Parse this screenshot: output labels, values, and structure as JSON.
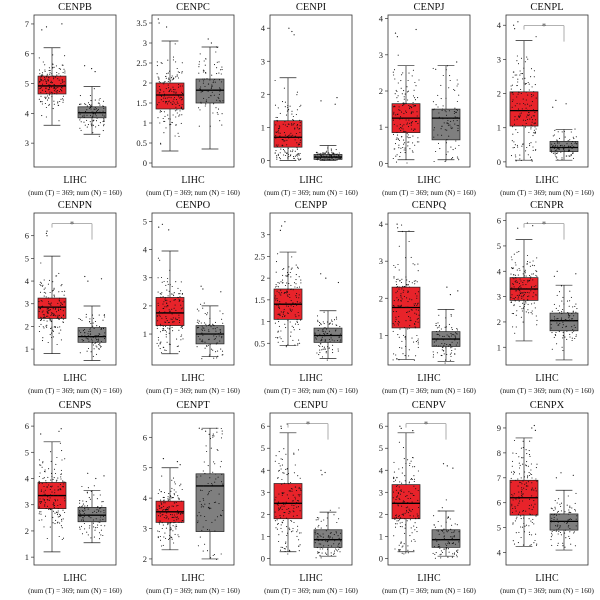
{
  "footer": {
    "dataset": "LIHC",
    "counts": "(num (T) = 369; num (N) = 160)"
  },
  "colors": {
    "tumor": "#e8232a",
    "normal": "#7f7f7f",
    "box_stroke": "#222222",
    "points": "#111111",
    "sig_line": "#999999"
  },
  "chart_data": [
    {
      "type": "boxplot",
      "title": "CENPB",
      "ylim": [
        2.2,
        7.3
      ],
      "yticks": [
        3,
        4,
        5,
        6,
        7
      ],
      "sig": false,
      "series": [
        {
          "name": "T",
          "whisker_low": 3.6,
          "q1": 4.65,
          "median": 4.92,
          "q3": 5.25,
          "whisker_high": 6.2,
          "pt_min": 3.1,
          "pt_max": 7.0
        },
        {
          "name": "N",
          "whisker_low": 3.3,
          "q1": 3.85,
          "median": 4.02,
          "q3": 4.22,
          "whisker_high": 4.9,
          "pt_min": 2.3,
          "pt_max": 5.6
        }
      ]
    },
    {
      "type": "boxplot",
      "title": "CENPC",
      "ylim": [
        -0.1,
        3.7
      ],
      "yticks": [
        0,
        0.5,
        1,
        1.5,
        2,
        2.5,
        3,
        3.5
      ],
      "sig": false,
      "series": [
        {
          "name": "T",
          "whisker_low": 0.3,
          "q1": 1.35,
          "median": 1.7,
          "q3": 2.0,
          "whisker_high": 3.05,
          "pt_min": 0.0,
          "pt_max": 3.6
        },
        {
          "name": "N",
          "whisker_low": 0.35,
          "q1": 1.5,
          "median": 1.82,
          "q3": 2.1,
          "whisker_high": 2.9,
          "pt_min": 0.0,
          "pt_max": 3.1
        }
      ]
    },
    {
      "type": "boxplot",
      "title": "CENPI",
      "ylim": [
        -0.2,
        4.4
      ],
      "yticks": [
        0,
        1,
        2,
        3,
        4
      ],
      "sig": false,
      "series": [
        {
          "name": "T",
          "whisker_low": 0.0,
          "q1": 0.4,
          "median": 0.7,
          "q3": 1.2,
          "whisker_high": 2.5,
          "pt_min": 0.0,
          "pt_max": 4.0
        },
        {
          "name": "N",
          "whisker_low": 0.0,
          "q1": 0.03,
          "median": 0.1,
          "q3": 0.18,
          "whisker_high": 0.45,
          "pt_min": 0.0,
          "pt_max": 1.9
        }
      ]
    },
    {
      "type": "boxplot",
      "title": "CENPJ",
      "ylim": [
        -0.1,
        4.1
      ],
      "yticks": [
        0,
        1,
        2,
        3,
        4
      ],
      "sig": false,
      "series": [
        {
          "name": "T",
          "whisker_low": 0.1,
          "q1": 0.85,
          "median": 1.25,
          "q3": 1.65,
          "whisker_high": 2.7,
          "pt_min": 0.0,
          "pt_max": 3.7
        },
        {
          "name": "N",
          "whisker_low": 0.1,
          "q1": 0.65,
          "median": 1.25,
          "q3": 1.5,
          "whisker_high": 2.7,
          "pt_min": 0.0,
          "pt_max": 2.8
        }
      ]
    },
    {
      "type": "boxplot",
      "title": "CENPL",
      "ylim": [
        -0.15,
        4.3
      ],
      "yticks": [
        0,
        1,
        2,
        3,
        4
      ],
      "sig": true,
      "series": [
        {
          "name": "T",
          "whisker_low": 0.05,
          "q1": 1.05,
          "median": 1.5,
          "q3": 2.05,
          "whisker_high": 3.55,
          "pt_min": 0.0,
          "pt_max": 4.1
        },
        {
          "name": "N",
          "whisker_low": 0.05,
          "q1": 0.3,
          "median": 0.42,
          "q3": 0.6,
          "whisker_high": 0.95,
          "pt_min": 0.0,
          "pt_max": 1.8
        }
      ]
    },
    {
      "type": "boxplot",
      "title": "CENPN",
      "ylim": [
        0.3,
        7.0
      ],
      "yticks": [
        1,
        2,
        3,
        4,
        5,
        6
      ],
      "sig": true,
      "series": [
        {
          "name": "T",
          "whisker_low": 0.8,
          "q1": 2.35,
          "median": 2.85,
          "q3": 3.25,
          "whisker_high": 5.1,
          "pt_min": 0.8,
          "pt_max": 6.2
        },
        {
          "name": "N",
          "whisker_low": 0.5,
          "q1": 1.3,
          "median": 1.55,
          "q3": 1.95,
          "whisker_high": 2.9,
          "pt_min": 0.4,
          "pt_max": 4.2
        }
      ]
    },
    {
      "type": "boxplot",
      "title": "CENPO",
      "ylim": [
        -0.1,
        5.3
      ],
      "yticks": [
        1,
        2,
        3,
        4,
        5
      ],
      "sig": false,
      "series": [
        {
          "name": "T",
          "whisker_low": 0.3,
          "q1": 1.3,
          "median": 1.75,
          "q3": 2.3,
          "whisker_high": 3.95,
          "pt_min": 0.3,
          "pt_max": 4.9
        },
        {
          "name": "N",
          "whisker_low": 0.2,
          "q1": 0.65,
          "median": 1.0,
          "q3": 1.3,
          "whisker_high": 2.0,
          "pt_min": 0.1,
          "pt_max": 2.7
        }
      ]
    },
    {
      "type": "boxplot",
      "title": "CENPP",
      "ylim": [
        0.0,
        3.5
      ],
      "yticks": [
        0.5,
        1,
        1.5,
        2,
        2.5,
        3
      ],
      "sig": false,
      "series": [
        {
          "name": "T",
          "whisker_low": 0.45,
          "q1": 1.05,
          "median": 1.4,
          "q3": 1.75,
          "whisker_high": 2.6,
          "pt_min": 0.4,
          "pt_max": 3.3
        },
        {
          "name": "N",
          "whisker_low": 0.15,
          "q1": 0.52,
          "median": 0.68,
          "q3": 0.85,
          "whisker_high": 1.25,
          "pt_min": 0.1,
          "pt_max": 2.1
        }
      ]
    },
    {
      "type": "boxplot",
      "title": "CENPQ",
      "ylim": [
        0.2,
        4.3
      ],
      "yticks": [
        1,
        2,
        3,
        4
      ],
      "sig": false,
      "series": [
        {
          "name": "T",
          "whisker_low": 0.35,
          "q1": 1.2,
          "median": 1.75,
          "q3": 2.3,
          "whisker_high": 3.8,
          "pt_min": 0.3,
          "pt_max": 4.0
        },
        {
          "name": "N",
          "whisker_low": 0.3,
          "q1": 0.7,
          "median": 0.9,
          "q3": 1.1,
          "whisker_high": 1.7,
          "pt_min": 0.2,
          "pt_max": 2.3
        }
      ]
    },
    {
      "type": "boxplot",
      "title": "CENPR",
      "ylim": [
        0.3,
        6.3
      ],
      "yticks": [
        1,
        2,
        3,
        4,
        5,
        6
      ],
      "sig": true,
      "series": [
        {
          "name": "T",
          "whisker_low": 1.25,
          "q1": 2.85,
          "median": 3.3,
          "q3": 3.75,
          "whisker_high": 5.25,
          "pt_min": 1.2,
          "pt_max": 5.9
        },
        {
          "name": "N",
          "whisker_low": 0.5,
          "q1": 1.65,
          "median": 2.05,
          "q3": 2.35,
          "whisker_high": 3.45,
          "pt_min": 0.4,
          "pt_max": 4.0
        }
      ]
    },
    {
      "type": "boxplot",
      "title": "CENPS",
      "ylim": [
        0.7,
        6.5
      ],
      "yticks": [
        1,
        2,
        3,
        4,
        5,
        6
      ],
      "sig": false,
      "series": [
        {
          "name": "T",
          "whisker_low": 1.2,
          "q1": 2.85,
          "median": 3.35,
          "q3": 3.85,
          "whisker_high": 5.4,
          "pt_min": 1.1,
          "pt_max": 5.9
        },
        {
          "name": "N",
          "whisker_low": 1.55,
          "q1": 2.35,
          "median": 2.6,
          "q3": 2.9,
          "whisker_high": 3.55,
          "pt_min": 1.5,
          "pt_max": 4.2
        }
      ]
    },
    {
      "type": "boxplot",
      "title": "CENPT",
      "ylim": [
        1.8,
        6.8
      ],
      "yticks": [
        2,
        3,
        4,
        5,
        6
      ],
      "sig": false,
      "series": [
        {
          "name": "T",
          "whisker_low": 2.3,
          "q1": 3.2,
          "median": 3.55,
          "q3": 3.9,
          "whisker_high": 5.0,
          "pt_min": 2.2,
          "pt_max": 5.3
        },
        {
          "name": "N",
          "whisker_low": 2.0,
          "q1": 2.9,
          "median": 4.4,
          "q3": 4.8,
          "whisker_high": 6.3,
          "pt_min": 1.9,
          "pt_max": 6.3
        }
      ]
    },
    {
      "type": "boxplot",
      "title": "CENPU",
      "ylim": [
        -0.3,
        6.6
      ],
      "yticks": [
        0,
        1,
        2,
        3,
        4,
        5,
        6
      ],
      "sig": true,
      "series": [
        {
          "name": "T",
          "whisker_low": 0.3,
          "q1": 1.8,
          "median": 2.5,
          "q3": 3.4,
          "whisker_high": 5.7,
          "pt_min": 0.2,
          "pt_max": 6.1
        },
        {
          "name": "N",
          "whisker_low": 0.1,
          "q1": 0.5,
          "median": 0.85,
          "q3": 1.3,
          "whisker_high": 2.1,
          "pt_min": 0.0,
          "pt_max": 4.0
        }
      ]
    },
    {
      "type": "boxplot",
      "title": "CENPV",
      "ylim": [
        -0.3,
        6.6
      ],
      "yticks": [
        0,
        1,
        2,
        3,
        4,
        5,
        6
      ],
      "sig": true,
      "series": [
        {
          "name": "T",
          "whisker_low": 0.3,
          "q1": 1.8,
          "median": 2.5,
          "q3": 3.35,
          "whisker_high": 5.7,
          "pt_min": 0.2,
          "pt_max": 6.0
        },
        {
          "name": "N",
          "whisker_low": 0.1,
          "q1": 0.5,
          "median": 0.85,
          "q3": 1.3,
          "whisker_high": 2.15,
          "pt_min": 0.0,
          "pt_max": 4.3
        }
      ]
    },
    {
      "type": "boxplot",
      "title": "CENPX",
      "ylim": [
        3.5,
        9.6
      ],
      "yticks": [
        4,
        5,
        6,
        7,
        8,
        9
      ],
      "sig": false,
      "series": [
        {
          "name": "T",
          "whisker_low": 4.25,
          "q1": 5.5,
          "median": 6.2,
          "q3": 6.9,
          "whisker_high": 8.6,
          "pt_min": 4.2,
          "pt_max": 9.1
        },
        {
          "name": "N",
          "whisker_low": 4.1,
          "q1": 4.9,
          "median": 5.25,
          "q3": 5.55,
          "whisker_high": 6.5,
          "pt_min": 4.0,
          "pt_max": 7.2
        }
      ]
    }
  ]
}
